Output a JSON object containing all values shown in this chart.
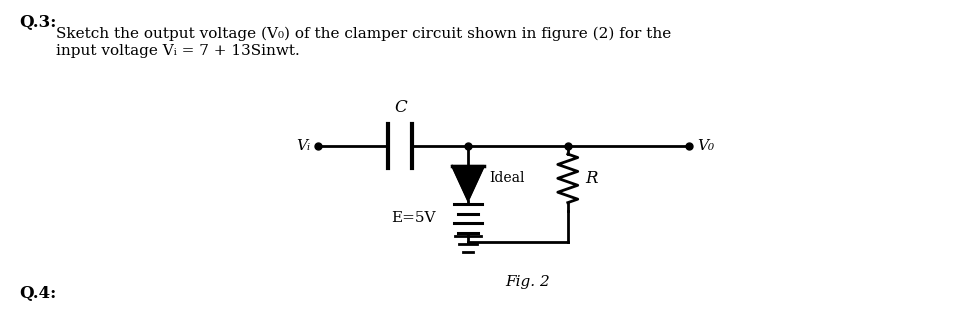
{
  "bg_color": "#ffffff",
  "title_q3": "Q.3:",
  "title_q4": "Q.4:",
  "line1": "Sketch the output voltage (V₀) of the clamper circuit shown in figure (2) for the",
  "line2": "input voltage Vᵢ = 7 + 13Sinwt.",
  "fig_caption": "Fig. 2",
  "label_C": "C",
  "label_Vi": "Vᵢ",
  "label_Vo": "V₀",
  "label_Ideal": "Ideal",
  "label_E": "E=5V",
  "label_R": "R",
  "text_color": "#000000",
  "line_color": "#000000",
  "font_size_body": 11,
  "font_size_labels": 11,
  "font_size_q": 12
}
